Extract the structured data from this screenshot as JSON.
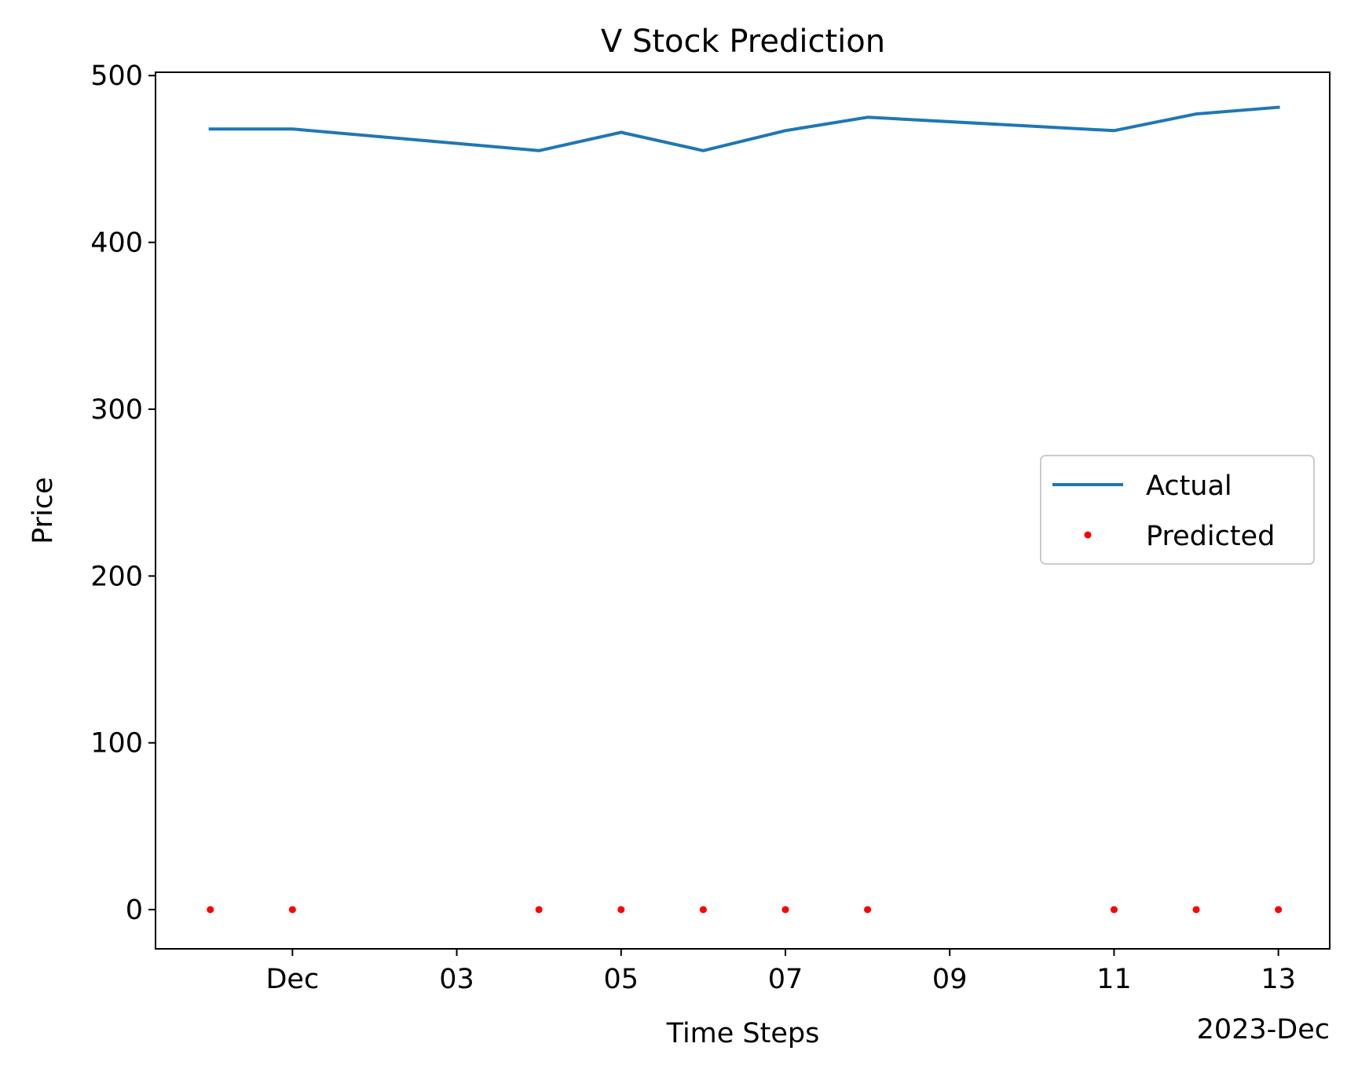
{
  "chart_data": {
    "type": "line",
    "title": "V Stock Prediction",
    "xlabel": "Time Steps",
    "ylabel": "Price",
    "x_offset_label": "2023-Dec",
    "x_ticks": [
      {
        "date": "2023-12-01",
        "label": "Dec"
      },
      {
        "date": "2023-12-03",
        "label": "03"
      },
      {
        "date": "2023-12-05",
        "label": "05"
      },
      {
        "date": "2023-12-07",
        "label": "07"
      },
      {
        "date": "2023-12-09",
        "label": "09"
      },
      {
        "date": "2023-12-11",
        "label": "11"
      },
      {
        "date": "2023-12-13",
        "label": "13"
      }
    ],
    "y_ticks": [
      0,
      100,
      200,
      300,
      400,
      500
    ],
    "xlim": [
      "2023-11-29T08:00",
      "2023-12-13T15:00"
    ],
    "ylim": [
      -23.5,
      502
    ],
    "grid": false,
    "legend_position": "center-right",
    "series": [
      {
        "name": "Actual",
        "style": "line",
        "color": "#1f77b4",
        "x": [
          "2023-11-30",
          "2023-12-01",
          "2023-12-04",
          "2023-12-05",
          "2023-12-06",
          "2023-12-07",
          "2023-12-08",
          "2023-12-11",
          "2023-12-12",
          "2023-12-13"
        ],
        "values": [
          468,
          468,
          455,
          466,
          455,
          467,
          475,
          467,
          477,
          481
        ]
      },
      {
        "name": "Predicted",
        "style": "scatter",
        "color": "#ff0000",
        "x": [
          "2023-11-30",
          "2023-12-01",
          "2023-12-04",
          "2023-12-05",
          "2023-12-06",
          "2023-12-07",
          "2023-12-08",
          "2023-12-11",
          "2023-12-12",
          "2023-12-13"
        ],
        "values": [
          0,
          0,
          0,
          0,
          0,
          0,
          0,
          0,
          0,
          0
        ]
      }
    ]
  }
}
